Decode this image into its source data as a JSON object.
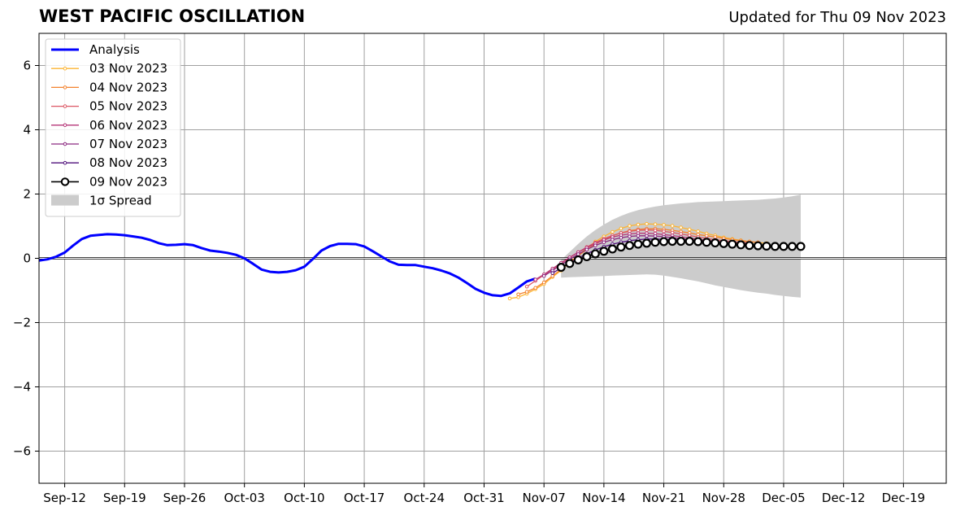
{
  "chart_data": {
    "type": "line",
    "title": "WEST PACIFIC OSCILLATION",
    "subtitle": "Updated for Thu 09 Nov 2023",
    "xlabel": "",
    "ylabel": "",
    "xlim": [
      "2023-09-09",
      "2023-12-24"
    ],
    "ylim": [
      -7,
      7
    ],
    "yticks": [
      -6,
      -4,
      -2,
      0,
      2,
      4,
      6
    ],
    "ytick_labels": [
      "−6",
      "−4",
      "−2",
      "0",
      "2",
      "4",
      "6"
    ],
    "xticks": [
      "2023-09-12",
      "2023-09-19",
      "2023-09-26",
      "2023-10-03",
      "2023-10-10",
      "2023-10-17",
      "2023-10-24",
      "2023-10-31",
      "2023-11-07",
      "2023-11-14",
      "2023-11-21",
      "2023-11-28",
      "2023-12-05",
      "2023-12-12",
      "2023-12-19"
    ],
    "xtick_labels": [
      "Sep-12",
      "Sep-19",
      "Sep-26",
      "Oct-03",
      "Oct-10",
      "Oct-17",
      "Oct-24",
      "Oct-31",
      "Nov-07",
      "Nov-14",
      "Nov-21",
      "Nov-28",
      "Dec-05",
      "Dec-12",
      "Dec-19"
    ],
    "grid": true,
    "legend_position": "top-left",
    "analysis": {
      "name": "Analysis",
      "color": "#0000ff",
      "start": "2023-09-09",
      "values": [
        -0.07,
        -0.03,
        0.05,
        0.18,
        0.4,
        0.6,
        0.7,
        0.73,
        0.75,
        0.74,
        0.72,
        0.68,
        0.64,
        0.57,
        0.47,
        0.41,
        0.42,
        0.44,
        0.41,
        0.32,
        0.24,
        0.21,
        0.17,
        0.11,
        0.0,
        -0.17,
        -0.35,
        -0.42,
        -0.44,
        -0.42,
        -0.37,
        -0.26,
        -0.02,
        0.24,
        0.38,
        0.45,
        0.45,
        0.44,
        0.37,
        0.22,
        0.06,
        -0.1,
        -0.2,
        -0.21,
        -0.21,
        -0.26,
        -0.31,
        -0.38,
        -0.47,
        -0.6,
        -0.77,
        -0.95,
        -1.07,
        -1.15,
        -1.17,
        -1.09,
        -0.91,
        -0.72,
        -0.63
      ]
    },
    "forecasts": [
      {
        "name": "03 Nov 2023",
        "color": "#fcb432",
        "start": "2023-11-03",
        "values": [
          -1.25,
          -1.21,
          -1.1,
          -0.96,
          -0.8,
          -0.58,
          -0.38,
          -0.12,
          0.1,
          0.32,
          0.52,
          0.68,
          0.82,
          0.93,
          1.01,
          1.05,
          1.07,
          1.06,
          1.04,
          1.01,
          0.96,
          0.9,
          0.84,
          0.77,
          0.71,
          0.65,
          0.6,
          0.56,
          0.52,
          0.49,
          0.47
        ]
      },
      {
        "name": "04 Nov 2023",
        "color": "#f3832f",
        "start": "2023-11-04",
        "values": [
          -1.12,
          -1.04,
          -0.92,
          -0.75,
          -0.55,
          -0.34,
          -0.12,
          0.08,
          0.27,
          0.44,
          0.58,
          0.7,
          0.79,
          0.86,
          0.9,
          0.92,
          0.92,
          0.9,
          0.87,
          0.83,
          0.79,
          0.74,
          0.7,
          0.66,
          0.62,
          0.58,
          0.55,
          0.52,
          0.5
        ]
      },
      {
        "name": "05 Nov 2023",
        "color": "#dc5764",
        "start": "2023-11-05",
        "values": [
          -0.88,
          -0.7,
          -0.52,
          -0.34,
          -0.16,
          0.02,
          0.19,
          0.35,
          0.49,
          0.61,
          0.71,
          0.79,
          0.84,
          0.87,
          0.88,
          0.87,
          0.84,
          0.8,
          0.76,
          0.71,
          0.66,
          0.62,
          0.58,
          0.55,
          0.52,
          0.5,
          0.48
        ]
      },
      {
        "name": "06 Nov 2023",
        "color": "#b73779",
        "start": "2023-11-06",
        "values": [
          -0.66,
          -0.5,
          -0.32,
          -0.14,
          0.03,
          0.19,
          0.33,
          0.46,
          0.57,
          0.66,
          0.72,
          0.76,
          0.78,
          0.78,
          0.77,
          0.74,
          0.71,
          0.67,
          0.63,
          0.59,
          0.56,
          0.53,
          0.5,
          0.48,
          0.46,
          0.45
        ]
      },
      {
        "name": "07 Nov 2023",
        "color": "#8c2981",
        "start": "2023-11-07",
        "values": [
          -0.55,
          -0.38,
          -0.2,
          -0.03,
          0.13,
          0.27,
          0.4,
          0.5,
          0.58,
          0.64,
          0.68,
          0.7,
          0.7,
          0.69,
          0.67,
          0.64,
          0.61,
          0.58,
          0.55,
          0.52,
          0.49,
          0.47,
          0.45,
          0.44,
          0.43
        ]
      },
      {
        "name": "08 Nov 2023",
        "color": "#51127c",
        "start": "2023-11-08",
        "values": [
          -0.46,
          -0.3,
          -0.14,
          0.01,
          0.14,
          0.26,
          0.36,
          0.44,
          0.5,
          0.55,
          0.58,
          0.6,
          0.6,
          0.59,
          0.58,
          0.56,
          0.53,
          0.51,
          0.48,
          0.46,
          0.44,
          0.42,
          0.41,
          0.4,
          0.39
        ]
      },
      {
        "name": "09 Nov 2023",
        "color": "#000000",
        "start": "2023-11-09",
        "values": [
          -0.28,
          -0.16,
          -0.05,
          0.05,
          0.14,
          0.22,
          0.29,
          0.35,
          0.4,
          0.44,
          0.47,
          0.5,
          0.52,
          0.53,
          0.53,
          0.53,
          0.52,
          0.5,
          0.48,
          0.46,
          0.44,
          0.42,
          0.4,
          0.39,
          0.38,
          0.37,
          0.37,
          0.37,
          0.37
        ]
      }
    ],
    "spread": {
      "name": "1σ Spread",
      "color": "#cccccc",
      "start": "2023-11-09",
      "upper": [
        -0.05,
        0.2,
        0.45,
        0.68,
        0.88,
        1.05,
        1.2,
        1.32,
        1.42,
        1.5,
        1.56,
        1.61,
        1.65,
        1.68,
        1.71,
        1.73,
        1.75,
        1.76,
        1.77,
        1.78,
        1.79,
        1.8,
        1.81,
        1.82,
        1.84,
        1.86,
        1.89,
        1.93,
        1.98
      ],
      "lower": [
        -0.6,
        -0.59,
        -0.58,
        -0.57,
        -0.56,
        -0.55,
        -0.54,
        -0.53,
        -0.52,
        -0.51,
        -0.5,
        -0.51,
        -0.54,
        -0.58,
        -0.62,
        -0.67,
        -0.72,
        -0.78,
        -0.84,
        -0.89,
        -0.94,
        -0.99,
        -1.03,
        -1.07,
        -1.1,
        -1.14,
        -1.17,
        -1.2,
        -1.22
      ]
    }
  }
}
